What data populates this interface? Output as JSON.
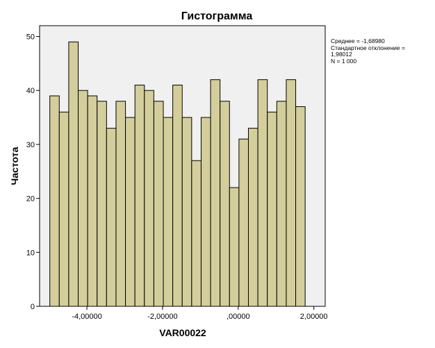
{
  "chart_data": {
    "type": "bar",
    "title": "Гистограмма",
    "xlabel": "VAR00022",
    "ylabel": "Частота",
    "xlim": [
      -5.25,
      2.3
    ],
    "ylim": [
      0,
      52
    ],
    "bin_start": -4.98,
    "bin_width": 0.25,
    "values": [
      39,
      36,
      49,
      40,
      39,
      38,
      33,
      38,
      35,
      41,
      40,
      38,
      35,
      41,
      35,
      27,
      35,
      42,
      38,
      22,
      31,
      33,
      42,
      36,
      38,
      42,
      37
    ],
    "x_ticks": [
      -4,
      -2,
      0,
      2
    ],
    "x_tick_labels": [
      "-4,00000",
      "-2,00000",
      ",00000",
      "2,00000"
    ],
    "y_ticks": [
      0,
      10,
      20,
      30,
      40,
      50
    ],
    "y_tick_labels": [
      "0",
      "10",
      "20",
      "30",
      "40",
      "50"
    ],
    "bar_color": "#d3ce9b",
    "plot_background": "#f0f0f0",
    "stats": {
      "mean": "Среднее = -1,68980",
      "std_line1": "Стандартное отклонение =",
      "std_line2": "1,98012",
      "n": "N = 1 000"
    }
  }
}
